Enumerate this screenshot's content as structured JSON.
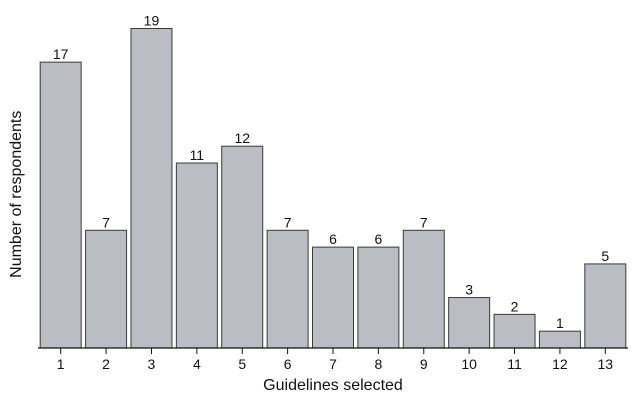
{
  "chart_data": {
    "type": "bar",
    "title": "",
    "xlabel": "Guidelines selected",
    "ylabel": "Number of respondents",
    "categories": [
      "1",
      "2",
      "3",
      "4",
      "5",
      "6",
      "7",
      "8",
      "9",
      "10",
      "11",
      "12",
      "13"
    ],
    "values": [
      17,
      7,
      19,
      11,
      12,
      7,
      6,
      6,
      7,
      3,
      2,
      1,
      5
    ],
    "data_labels": [
      "17",
      "7",
      "19",
      "11",
      "12",
      "7",
      "6",
      "6",
      "7",
      "3",
      "2",
      "1",
      "5"
    ],
    "ylim": [
      0,
      19
    ],
    "grid": false,
    "legend": "none",
    "colors": {
      "bar_fill": "#bcbdc2",
      "bar_stroke": "#3a3a3a",
      "axis": "#111111",
      "text": "#111111"
    }
  }
}
